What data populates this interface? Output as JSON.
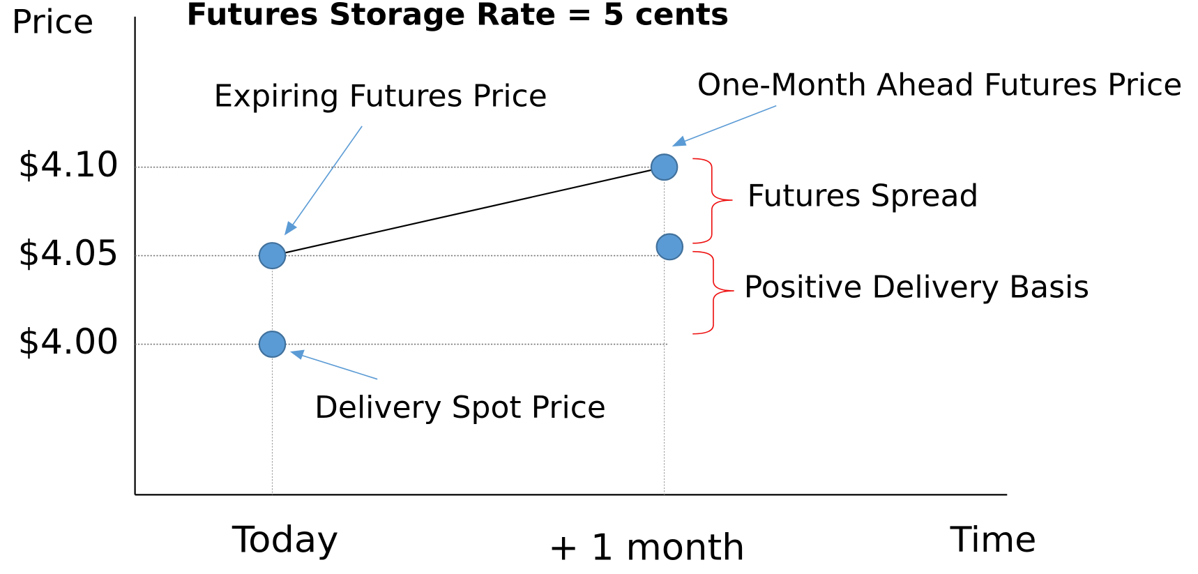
{
  "chart_data": {
    "type": "scatter",
    "title": "Futures Storage Rate = 5 cents",
    "title_color": "#ee1111",
    "y_label": "Price",
    "x_label": "Time",
    "categories": [
      "Today",
      "+ 1 month"
    ],
    "ylim": [
      3.915,
      4.185
    ],
    "yticks": [
      {
        "value": 4.1,
        "label": "$4.10"
      },
      {
        "value": 4.05,
        "label": "$4.05"
      },
      {
        "value": 4.0,
        "label": "$4.00"
      }
    ],
    "grid": true,
    "series": [
      {
        "color": "#5b9bd5",
        "line": true,
        "values": [
          4.05,
          4.1
        ]
      },
      {
        "color": "#5b9bd5",
        "line": false,
        "values": [
          4.0,
          4.055
        ]
      }
    ],
    "annotations": [
      {
        "text": "Expiring Futures Price"
      },
      {
        "text": "One-Month Ahead Futures Price"
      },
      {
        "text": "Delivery Spot Price"
      },
      {
        "text": "Futures Spread",
        "color": "#ee1111"
      },
      {
        "text": "Positive Delivery Basis",
        "color": "#ee1111"
      }
    ]
  }
}
